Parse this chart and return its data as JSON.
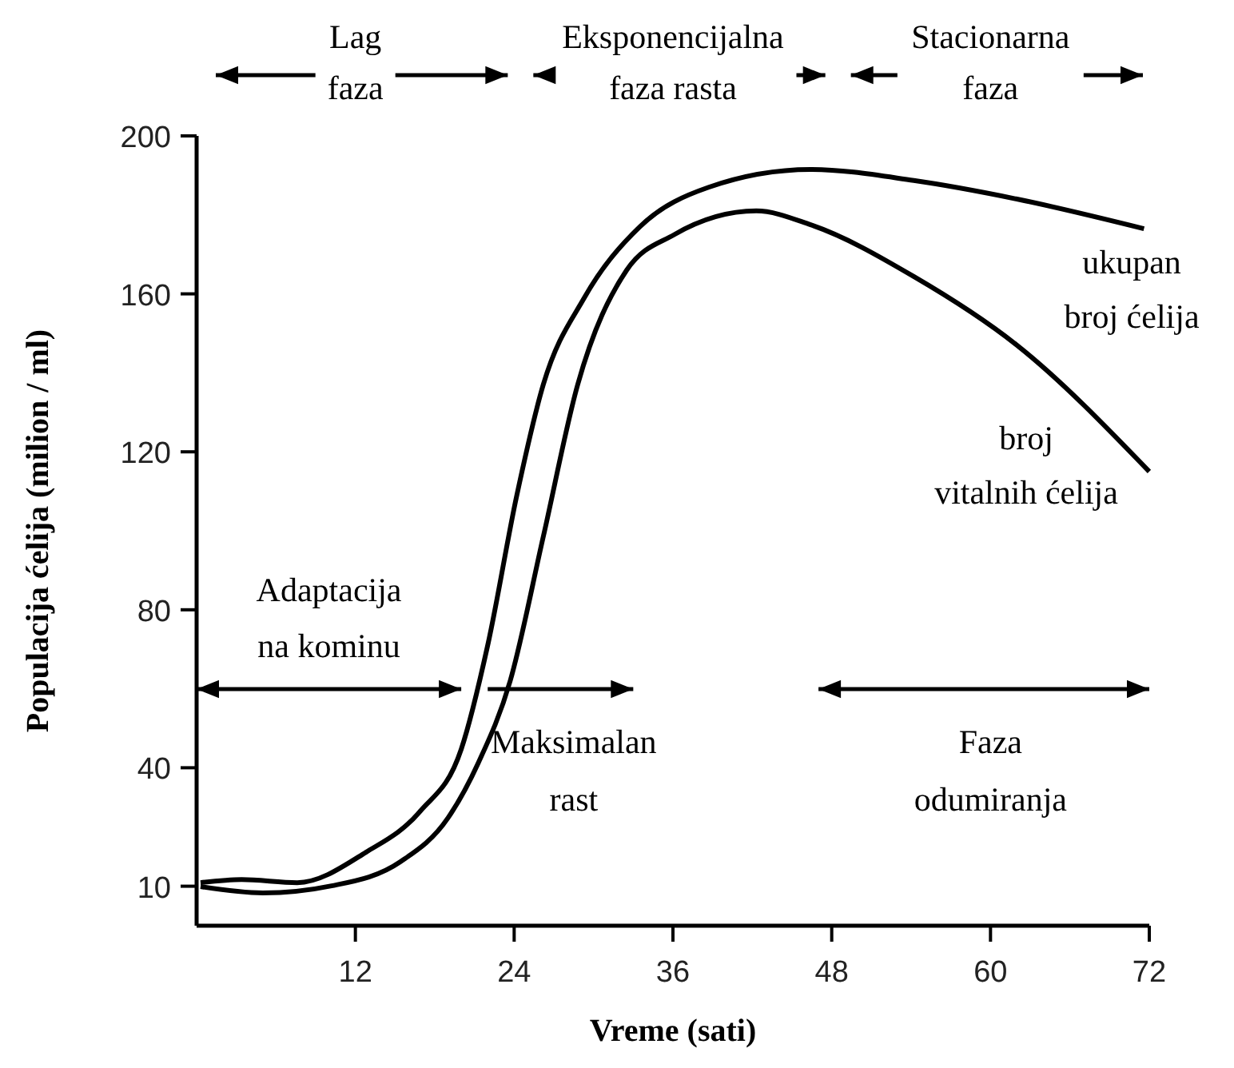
{
  "chart_data": {
    "type": "line",
    "xlabel": "Vreme (sati)",
    "ylabel": "Populacija ćelija (milion / ml)",
    "xlim": [
      0,
      72
    ],
    "xticks": [
      12,
      24,
      36,
      48,
      60,
      72
    ],
    "ylim": [
      0,
      200
    ],
    "yticks": [
      10,
      40,
      80,
      120,
      160,
      200
    ],
    "grid": false,
    "legend": false,
    "marker": "none",
    "line_style": "solid",
    "series": [
      {
        "name": "ukupan broj ćelija",
        "color": "#000000",
        "x": [
          0.3,
          3.4,
          7.6,
          12.8,
          16.9,
          20,
          22,
          24.2,
          26.2,
          29.3,
          33.5,
          38.7,
          46.4,
          54.2,
          62,
          71.6
        ],
        "values": [
          10.9,
          11.7,
          10.9,
          18.6,
          29,
          44.7,
          71,
          109,
          137,
          159,
          177,
          187,
          191.5,
          188.7,
          184,
          176.5
        ]
      },
      {
        "name": "broj vitalnih ćelija",
        "color": "#000000",
        "x": [
          0.3,
          5,
          10.2,
          15.4,
          19,
          21.3,
          23.7,
          26.2,
          28.8,
          32.5,
          36.1,
          42.3,
          46.4,
          54.2,
          62,
          72
        ],
        "values": [
          9.9,
          8.3,
          10.1,
          16.2,
          27.3,
          41.3,
          62,
          98.5,
          137,
          166,
          175,
          181,
          177.5,
          164.4,
          147,
          115
        ]
      }
    ],
    "annotations": [
      "Lag\nfaza",
      "Eksponencijalna\nfaza rasta",
      "Stacionarna\nfaza",
      "Adaptacija\nna kominu",
      "Maksimalan\nrast",
      "Faza\nodumiranja"
    ]
  }
}
